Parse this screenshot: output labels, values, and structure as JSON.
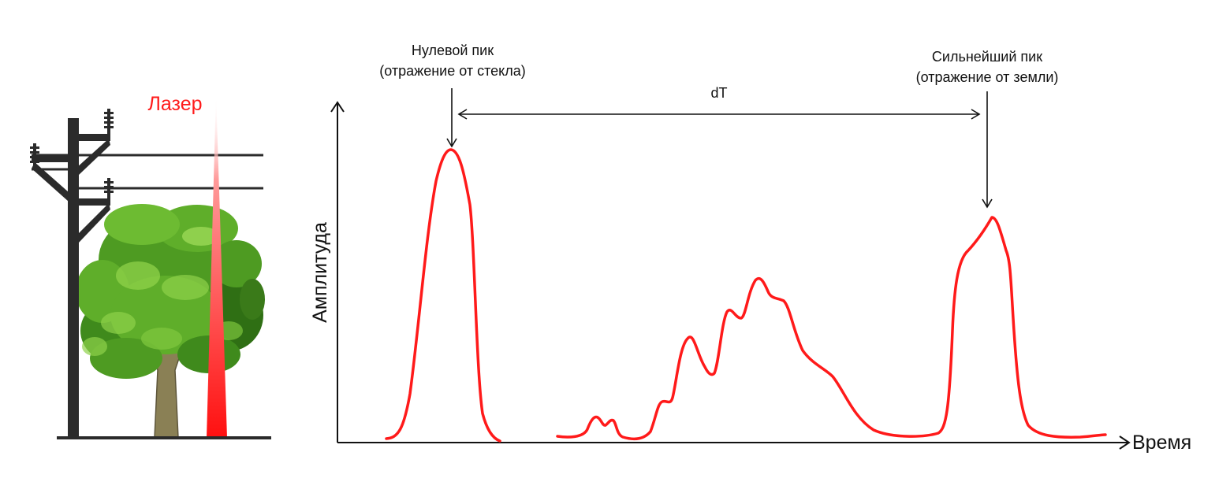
{
  "illustration": {
    "laser_label": "Лазер",
    "laser_color": "#ff1a1a",
    "pole_color": "#2b2b2b",
    "foliage_colors": [
      "#3f8a1c",
      "#5fae2a",
      "#8fd14a"
    ],
    "trunk_color": "#8a8055"
  },
  "waveform": {
    "y_axis_label": "Амплитуда",
    "x_axis_label": "Время",
    "curve_color": "#ff1a1a",
    "zero_peak": {
      "line1": "Нулевой пик",
      "line2": "(отражение от стекла)"
    },
    "strongest_peak": {
      "line1": "Сильнейший пик",
      "line2": "(отражение от земли)"
    },
    "interval_label": "dT"
  }
}
